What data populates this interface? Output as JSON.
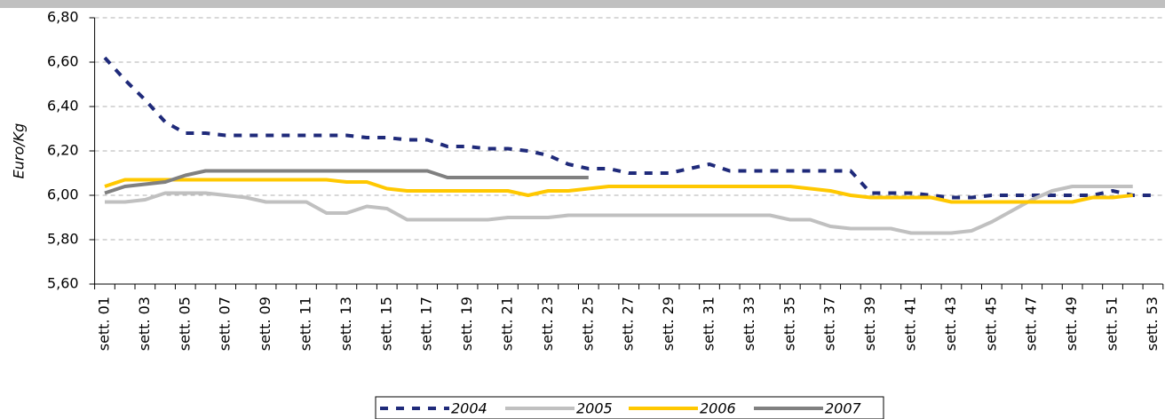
{
  "chart_data": {
    "type": "line",
    "y_label": "Euro/Kg",
    "categories": [
      "sett. 01",
      null,
      "sett. 03",
      null,
      "sett. 05",
      null,
      "sett. 07",
      null,
      "sett. 09",
      null,
      "sett. 11",
      null,
      "sett. 13",
      null,
      "sett. 15",
      null,
      "sett. 17",
      null,
      "sett. 19",
      null,
      "sett. 21",
      null,
      "sett. 23",
      null,
      "sett. 25",
      null,
      "sett. 27",
      null,
      "sett. 29",
      null,
      "sett. 31",
      null,
      "sett. 33",
      null,
      "sett. 35",
      null,
      "sett. 37",
      null,
      "sett. 39",
      null,
      "sett. 41",
      null,
      "sett. 43",
      null,
      "sett. 45",
      null,
      "sett. 47",
      null,
      "sett. 49",
      null,
      "sett. 51",
      null,
      "sett. 53"
    ],
    "ylim": [
      5.6,
      6.8
    ],
    "yticks": [
      {
        "value": 5.6,
        "label": "5,60"
      },
      {
        "value": 5.8,
        "label": "5,80"
      },
      {
        "value": 6.0,
        "label": "6,00"
      },
      {
        "value": 6.2,
        "label": "6,20"
      },
      {
        "value": 6.4,
        "label": "6,40"
      },
      {
        "value": 6.6,
        "label": "6,60"
      },
      {
        "value": 6.8,
        "label": "6,80"
      }
    ],
    "grid": true,
    "legend": "bottom",
    "series": [
      {
        "name": "2004",
        "color": "#1f2a7a",
        "style": "dashed",
        "values": [
          6.62,
          6.52,
          6.43,
          6.33,
          6.28,
          6.28,
          6.27,
          6.27,
          6.27,
          6.27,
          6.27,
          6.27,
          6.27,
          6.26,
          6.26,
          6.25,
          6.25,
          6.22,
          6.22,
          6.21,
          6.21,
          6.2,
          6.18,
          6.14,
          6.12,
          6.12,
          6.1,
          6.1,
          6.1,
          6.12,
          6.14,
          6.11,
          6.11,
          6.11,
          6.11,
          6.11,
          6.11,
          6.11,
          6.01,
          6.01,
          6.01,
          6.0,
          5.99,
          5.99,
          6.0,
          6.0,
          6.0,
          6.0,
          6.0,
          6.0,
          6.02,
          6.0,
          6.0
        ]
      },
      {
        "name": "2005",
        "color": "#c0c0c0",
        "style": "solid",
        "values": [
          5.97,
          5.97,
          5.98,
          6.01,
          6.01,
          6.01,
          6.0,
          5.99,
          5.97,
          5.97,
          5.97,
          5.92,
          5.92,
          5.95,
          5.94,
          5.89,
          5.89,
          5.89,
          5.89,
          5.89,
          5.9,
          5.9,
          5.9,
          5.91,
          5.91,
          5.91,
          5.91,
          5.91,
          5.91,
          5.91,
          5.91,
          5.91,
          5.91,
          5.91,
          5.89,
          5.89,
          5.86,
          5.85,
          5.85,
          5.85,
          5.83,
          5.83,
          5.83,
          5.84,
          5.88,
          5.93,
          5.98,
          6.02,
          6.04,
          6.04,
          6.04,
          6.04,
          null
        ]
      },
      {
        "name": "2006",
        "color": "#ffc800",
        "style": "solid",
        "values": [
          6.04,
          6.07,
          6.07,
          6.07,
          6.07,
          6.07,
          6.07,
          6.07,
          6.07,
          6.07,
          6.07,
          6.07,
          6.06,
          6.06,
          6.03,
          6.02,
          6.02,
          6.02,
          6.02,
          6.02,
          6.02,
          6.0,
          6.02,
          6.02,
          6.03,
          6.04,
          6.04,
          6.04,
          6.04,
          6.04,
          6.04,
          6.04,
          6.04,
          6.04,
          6.04,
          6.03,
          6.02,
          6.0,
          5.99,
          5.99,
          5.99,
          5.99,
          5.97,
          5.97,
          5.97,
          5.97,
          5.97,
          5.97,
          5.97,
          5.99,
          5.99,
          6.0,
          null
        ]
      },
      {
        "name": "2007",
        "color": "#808080",
        "style": "solid",
        "values": [
          6.01,
          6.04,
          6.05,
          6.06,
          6.09,
          6.11,
          6.11,
          6.11,
          6.11,
          6.11,
          6.11,
          6.11,
          6.11,
          6.11,
          6.11,
          6.11,
          6.11,
          6.08,
          6.08,
          6.08,
          6.08,
          6.08,
          6.08,
          6.08,
          6.08,
          null,
          null,
          null,
          null,
          null,
          null,
          null,
          null,
          null,
          null,
          null,
          null,
          null,
          null,
          null,
          null,
          null,
          null,
          null,
          null,
          null,
          null,
          null,
          null,
          null,
          null,
          null,
          null
        ]
      }
    ]
  }
}
